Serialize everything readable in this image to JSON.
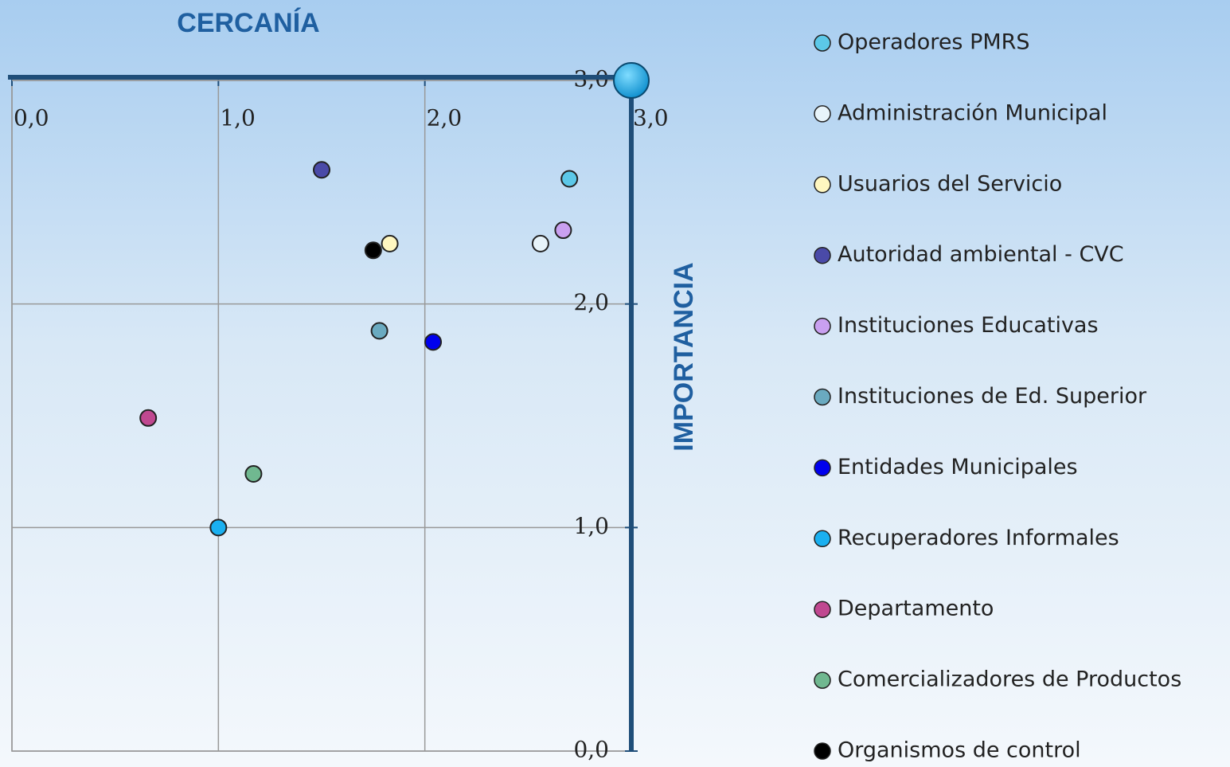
{
  "chart_data": {
    "type": "scatter",
    "x_label": "CERCANÍA",
    "y_label": "IMPORTANCIA",
    "xlim": [
      0,
      3
    ],
    "ylim": [
      0,
      3
    ],
    "xticks": [
      {
        "value": 0,
        "label": "0,0"
      },
      {
        "value": 1,
        "label": "1,0"
      },
      {
        "value": 2,
        "label": "2,0"
      },
      {
        "value": 3,
        "label": "3,0"
      }
    ],
    "yticks": [
      {
        "value": 0,
        "label": "0,0"
      },
      {
        "value": 1,
        "label": "1,0"
      },
      {
        "value": 2,
        "label": "2,0"
      },
      {
        "value": 3,
        "label": "3,0"
      }
    ],
    "grid": true,
    "series": [
      {
        "name": "Operadores PMRS",
        "color": "#5cc8e8",
        "x": [
          2.7
        ],
        "y": [
          2.56
        ]
      },
      {
        "name": "Administración Municipal",
        "color": "#e8f4fa",
        "x": [
          2.56
        ],
        "y": [
          2.27
        ]
      },
      {
        "name": "Usuarios del Servicio",
        "color": "#fff7c0",
        "x": [
          1.83
        ],
        "y": [
          2.27
        ]
      },
      {
        "name": "Autoridad ambiental - CVC",
        "color": "#4a4aa8",
        "x": [
          1.5
        ],
        "y": [
          2.6
        ]
      },
      {
        "name": "Instituciones Educativas",
        "color": "#c9a0f0",
        "x": [
          2.67
        ],
        "y": [
          2.33
        ]
      },
      {
        "name": "Instituciones de Ed. Superior",
        "color": "#6aaac0",
        "x": [
          1.78
        ],
        "y": [
          1.88
        ]
      },
      {
        "name": "Entidades Municipales",
        "color": "#0000ee",
        "x": [
          2.04
        ],
        "y": [
          1.83
        ]
      },
      {
        "name": "Recuperadores Informales",
        "color": "#1ab0f0",
        "x": [
          1.0
        ],
        "y": [
          1.0
        ]
      },
      {
        "name": "Departamento",
        "color": "#c04890",
        "x": [
          0.66
        ],
        "y": [
          1.49
        ]
      },
      {
        "name": "Comercializadores de Productos",
        "color": "#70b890",
        "x": [
          1.17
        ],
        "y": [
          1.24
        ]
      },
      {
        "name": "Organismos de control",
        "color": "#000000",
        "x": [
          1.75
        ],
        "y": [
          2.24
        ]
      }
    ]
  }
}
